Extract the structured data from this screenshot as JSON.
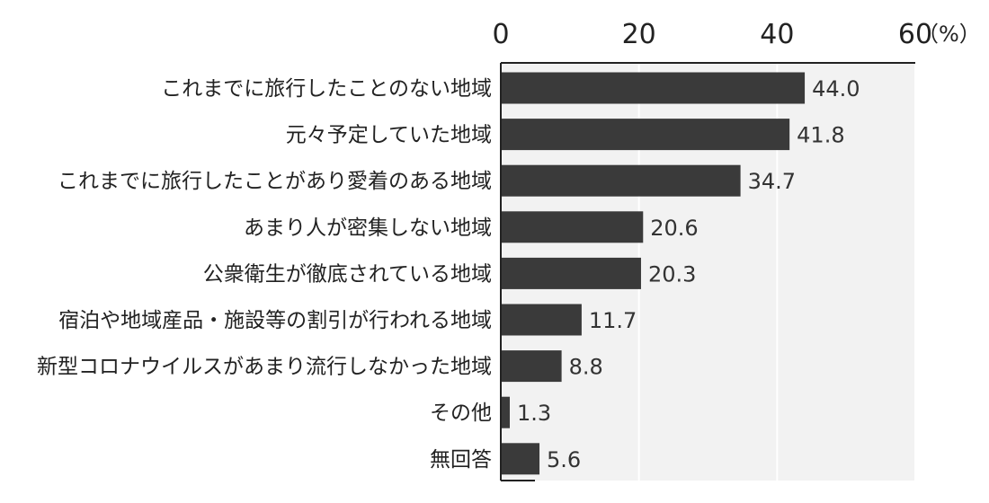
{
  "chart_data": {
    "type": "bar",
    "orientation": "horizontal",
    "categories": [
      "これまでに旅行したことのない地域",
      "元々予定していた地域",
      "これまでに旅行したことがあり愛着のある地域",
      "あまり人が密集しない地域",
      "公衆衛生が徹底されている地域",
      "宿泊や地域産品・施設等の割引が行われる地域",
      "新型コロナウイルスがあまり流行しなかった地域",
      "その他",
      "無回答"
    ],
    "values": [
      44.0,
      41.8,
      34.7,
      20.6,
      20.3,
      11.7,
      8.8,
      1.3,
      5.6
    ],
    "value_labels": [
      "44.0",
      "41.8",
      "34.7",
      "20.6",
      "20.3",
      "11.7",
      "8.8",
      "1.3",
      "5.6"
    ],
    "xlim": [
      0,
      60
    ],
    "x_ticks": [
      0,
      20,
      40,
      60
    ],
    "x_tick_labels": [
      "0",
      "20",
      "40",
      "60"
    ],
    "x_unit": "（%）",
    "axis_position": "top",
    "grid": true,
    "colors": {
      "bar": "#3a3a3a",
      "plot_background": "#f2f2f2",
      "grid": "#ffffff",
      "axis": "#222222"
    }
  }
}
